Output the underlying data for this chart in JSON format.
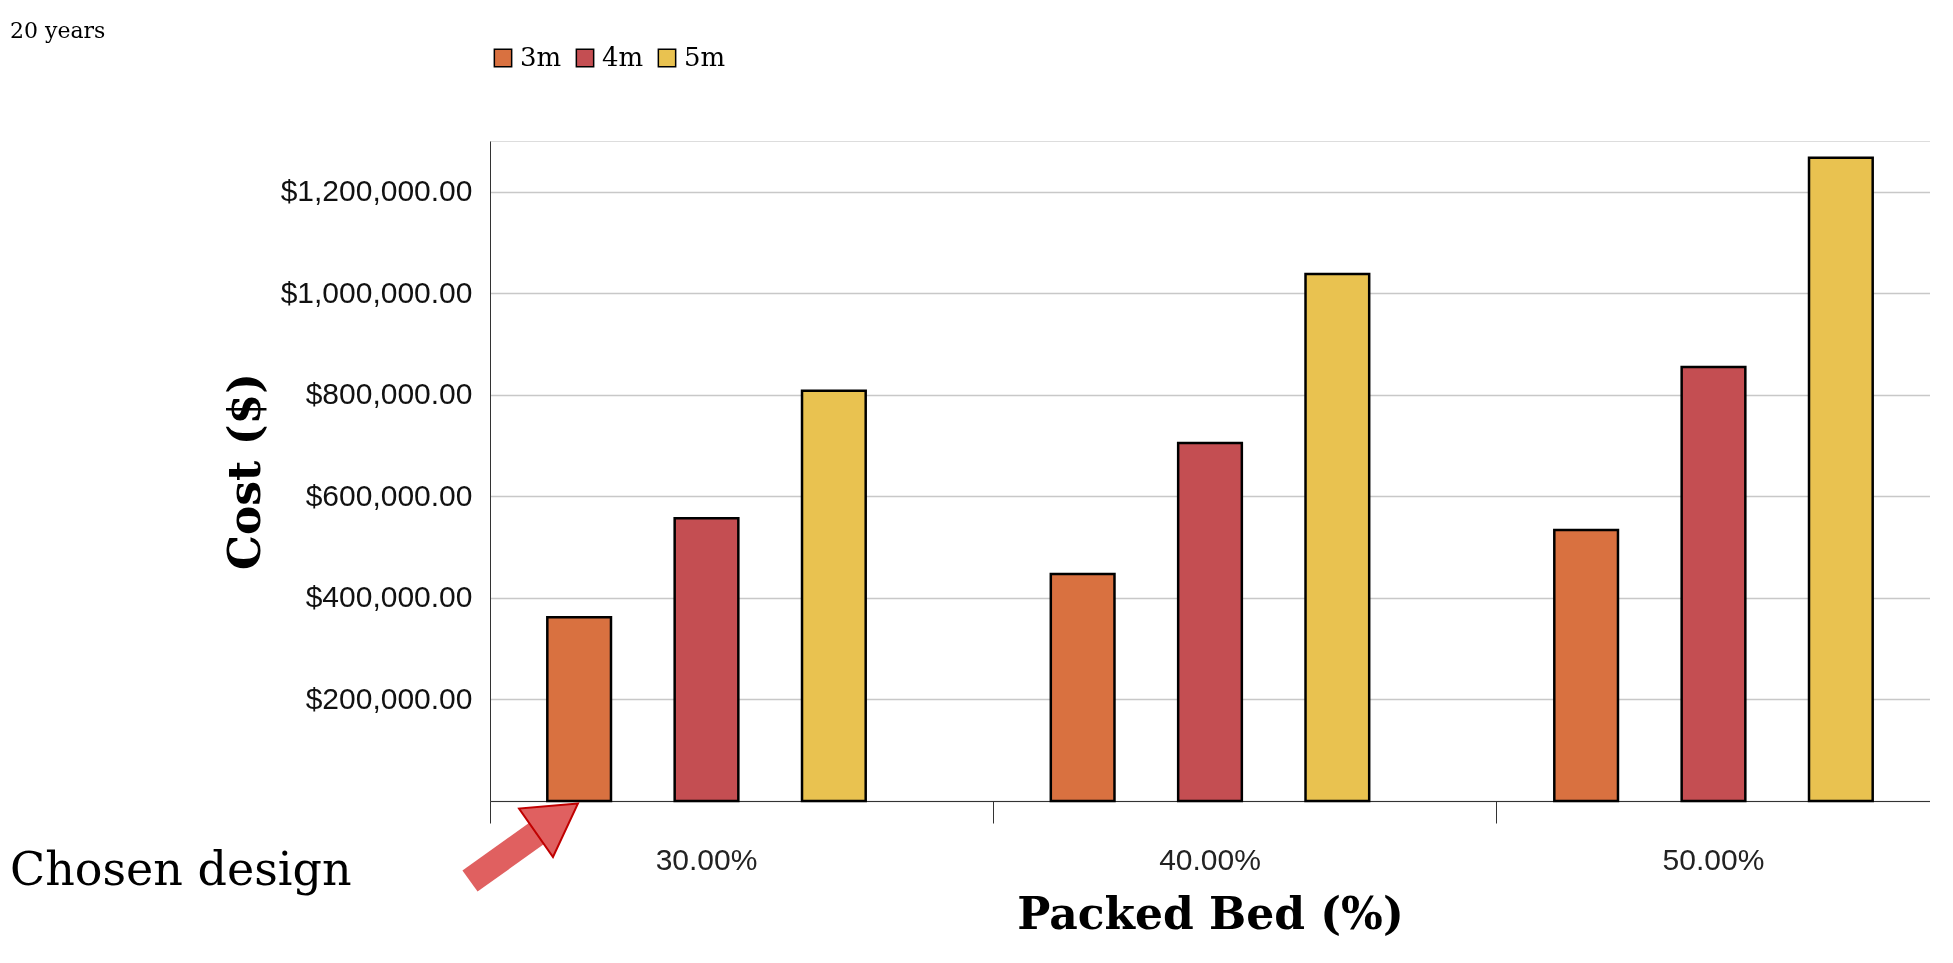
{
  "chart_data": {
    "type": "bar",
    "xlabel": "Packed Bed (%)",
    "ylabel": "Cost ($)",
    "categories": [
      "30.00%",
      "40.00%",
      "50.00%"
    ],
    "series": [
      {
        "name": "3m",
        "color": "#d97140",
        "values": [
          362000,
          447000,
          534000
        ]
      },
      {
        "name": "4m",
        "color": "#c44e52",
        "values": [
          557000,
          705000,
          855000
        ]
      },
      {
        "name": "5m",
        "color": "#e9c250",
        "values": [
          808000,
          1038000,
          1267000
        ]
      }
    ],
    "ylim": [
      0,
      1300000
    ],
    "yticks": [
      {
        "value": 0,
        "label": null
      },
      {
        "value": 200000,
        "label": "$200,000.00"
      },
      {
        "value": 400000,
        "label": "$400,000.00"
      },
      {
        "value": 600000,
        "label": "$600,000.00"
      },
      {
        "value": 800000,
        "label": "$800,000.00"
      },
      {
        "value": 1000000,
        "label": "$1,000,000.00"
      },
      {
        "value": 1200000,
        "label": "$1,200,000.00"
      }
    ],
    "grid": "y",
    "legend": "top",
    "annotations": [
      "20 years",
      "Chosen design"
    ]
  }
}
